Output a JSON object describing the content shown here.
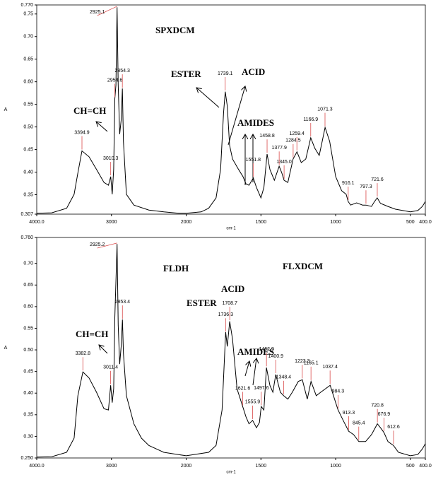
{
  "chart_data": [
    {
      "type": "line",
      "x_label": "cm-1",
      "y_label": "A",
      "color": "#000000",
      "peak_color": "#d94a4a",
      "annotations": [
        "SPXDCM",
        "ESTER",
        "ACID",
        "CH=CH",
        "AMIDES"
      ],
      "xlim": [
        4000,
        400
      ],
      "xticks": [
        {
          "value": 4000,
          "label": "4000.0"
        },
        3000,
        2000,
        1500,
        1000,
        500,
        {
          "value": 400,
          "label": "400.0"
        }
      ],
      "ylim": [
        0.307,
        0.77
      ],
      "yticks": [
        0.307,
        0.35,
        {
          "value": 0.4,
          "label": "0.40"
        },
        0.45,
        {
          "value": 0.5,
          "label": "0.50"
        },
        0.55,
        {
          "value": 0.6,
          "label": "0.60"
        },
        0.65,
        {
          "value": 0.7,
          "label": "0.70"
        },
        0.75,
        {
          "value": 0.77,
          "label": "0.770"
        }
      ],
      "x": [
        4000,
        3800,
        3600,
        3500,
        3450,
        3395,
        3300,
        3200,
        3100,
        3040,
        3010,
        2990,
        2970,
        2955,
        2940,
        2925,
        2910,
        2890,
        2870,
        2854,
        2840,
        2800,
        2700,
        2500,
        2300,
        2100,
        2000,
        1900,
        1850,
        1800,
        1770,
        1750,
        1739,
        1725,
        1710,
        1690,
        1650,
        1620,
        1600,
        1580,
        1551,
        1530,
        1500,
        1480,
        1459,
        1440,
        1410,
        1378,
        1360,
        1345,
        1320,
        1285,
        1259,
        1230,
        1200,
        1167,
        1140,
        1110,
        1090,
        1071,
        1040,
        1000,
        960,
        930,
        916,
        900,
        860,
        820,
        797,
        760,
        740,
        722,
        700,
        650,
        600,
        550,
        500,
        450,
        420,
        400
      ],
      "values": [
        0.309,
        0.31,
        0.32,
        0.351,
        0.398,
        0.447,
        0.434,
        0.406,
        0.377,
        0.371,
        0.39,
        0.351,
        0.406,
        0.562,
        0.593,
        0.765,
        0.593,
        0.484,
        0.515,
        0.585,
        0.468,
        0.351,
        0.327,
        0.316,
        0.312,
        0.309,
        0.309,
        0.312,
        0.32,
        0.343,
        0.406,
        0.531,
        0.578,
        0.546,
        0.46,
        0.429,
        0.406,
        0.39,
        0.374,
        0.371,
        0.387,
        0.366,
        0.343,
        0.366,
        0.44,
        0.406,
        0.382,
        0.413,
        0.398,
        0.382,
        0.377,
        0.429,
        0.445,
        0.421,
        0.429,
        0.476,
        0.453,
        0.437,
        0.468,
        0.499,
        0.468,
        0.39,
        0.359,
        0.351,
        0.335,
        0.327,
        0.332,
        0.327,
        0.327,
        0.324,
        0.335,
        0.343,
        0.331,
        0.324,
        0.318,
        0.315,
        0.312,
        0.315,
        0.324,
        0.335
      ],
      "peaks": [
        {
          "label": "3394.9",
          "x": 3394.9
        },
        {
          "label": "3010.3",
          "x": 3010.3
        },
        {
          "label": "2954.6",
          "x": 2954.6
        },
        {
          "label": "2925.1",
          "x": 2925.1
        },
        {
          "label": "2854.3",
          "x": 2854.3
        },
        {
          "label": "1739.1",
          "x": 1739.1
        },
        {
          "label": "1551.8",
          "x": 1551.8
        },
        {
          "label": "1458.8",
          "x": 1458.8
        },
        {
          "label": "1377.9",
          "x": 1377.9
        },
        {
          "label": "1345.0",
          "x": 1345
        },
        {
          "label": "1284.5",
          "x": 1284.5
        },
        {
          "label": "1259.4",
          "x": 1259.4
        },
        {
          "label": "1166.9",
          "x": 1166.9
        },
        {
          "label": "1071.3",
          "x": 1071.3
        },
        {
          "label": "916.1",
          "x": 916.1
        },
        {
          "label": "797.3",
          "x": 797.3
        },
        {
          "label": "721.6",
          "x": 721.6
        }
      ]
    },
    {
      "type": "line",
      "x_label": "cm-1",
      "y_label": "A",
      "color": "#000000",
      "peak_color": "#d94a4a",
      "annotations": [
        "FLDH",
        "FLXDCM",
        "ACID",
        "ESTER",
        "CH=CH",
        "AMIDES"
      ],
      "xlim": [
        4000,
        400
      ],
      "xticks": [
        {
          "value": 4000,
          "label": "4000.0"
        },
        3000,
        2000,
        1500,
        1000,
        500,
        {
          "value": 400,
          "label": "400.0"
        }
      ],
      "ylim": [
        0.25,
        0.76
      ],
      "yticks": [
        {
          "value": 0.25,
          "label": "0.250"
        },
        {
          "value": 0.3,
          "label": "0.30"
        },
        0.35,
        {
          "value": 0.4,
          "label": "0.40"
        },
        0.45,
        {
          "value": 0.5,
          "label": "0.50"
        },
        0.55,
        {
          "value": 0.6,
          "label": "0.60"
        },
        0.65,
        {
          "value": 0.7,
          "label": "0.70"
        },
        {
          "value": 0.76,
          "label": "0.760"
        }
      ],
      "x": [
        4000,
        3800,
        3600,
        3500,
        3450,
        3383,
        3300,
        3200,
        3100,
        3040,
        3011,
        2990,
        2970,
        2955,
        2925,
        2910,
        2890,
        2870,
        2853,
        2840,
        2800,
        2700,
        2600,
        2500,
        2300,
        2000,
        1850,
        1800,
        1760,
        1736,
        1725,
        1709,
        1690,
        1660,
        1622,
        1600,
        1580,
        1556,
        1530,
        1510,
        1498,
        1480,
        1463,
        1440,
        1420,
        1401,
        1370,
        1348,
        1320,
        1290,
        1250,
        1223,
        1190,
        1165,
        1130,
        1100,
        1037,
        1000,
        984,
        950,
        913,
        880,
        845,
        800,
        760,
        721,
        700,
        677,
        650,
        613,
        580,
        500,
        450,
        420,
        400
      ],
      "values": [
        0.252,
        0.253,
        0.263,
        0.296,
        0.394,
        0.449,
        0.435,
        0.402,
        0.364,
        0.361,
        0.418,
        0.378,
        0.41,
        0.574,
        0.745,
        0.557,
        0.467,
        0.508,
        0.57,
        0.492,
        0.394,
        0.329,
        0.296,
        0.279,
        0.263,
        0.255,
        0.263,
        0.279,
        0.361,
        0.541,
        0.508,
        0.566,
        0.525,
        0.41,
        0.369,
        0.345,
        0.329,
        0.337,
        0.32,
        0.332,
        0.369,
        0.361,
        0.459,
        0.418,
        0.402,
        0.443,
        0.402,
        0.394,
        0.386,
        0.402,
        0.427,
        0.431,
        0.386,
        0.427,
        0.394,
        0.402,
        0.418,
        0.378,
        0.361,
        0.337,
        0.312,
        0.304,
        0.288,
        0.288,
        0.304,
        0.329,
        0.32,
        0.309,
        0.288,
        0.279,
        0.263,
        0.255,
        0.258,
        0.271,
        0.283
      ],
      "peaks": [
        {
          "label": "3382.8",
          "x": 3382.8
        },
        {
          "label": "3011.4",
          "x": 3011.4
        },
        {
          "label": "2925.2",
          "x": 2925.2
        },
        {
          "label": "2853.4",
          "x": 2853.4
        },
        {
          "label": "1736.3",
          "x": 1736.3
        },
        {
          "label": "1708.7",
          "x": 1708.7
        },
        {
          "label": "1621.6",
          "x": 1621.6
        },
        {
          "label": "1555.9",
          "x": 1555.9
        },
        {
          "label": "1497.6",
          "x": 1497.6
        },
        {
          "label": "1462.9",
          "x": 1462.9
        },
        {
          "label": "1400.9",
          "x": 1400.9
        },
        {
          "label": "1348.4",
          "x": 1348.4
        },
        {
          "label": "1223.3",
          "x": 1223.3
        },
        {
          "label": "1165.1",
          "x": 1165.1
        },
        {
          "label": "1037.4",
          "x": 1037.4
        },
        {
          "label": "984.3",
          "x": 984.3
        },
        {
          "label": "913.3",
          "x": 913.3
        },
        {
          "label": "845.4",
          "x": 845.4
        },
        {
          "label": "720.8",
          "x": 720.8
        },
        {
          "label": "676.9",
          "x": 676.9
        },
        {
          "label": "612.6",
          "x": 612.6
        }
      ]
    }
  ]
}
